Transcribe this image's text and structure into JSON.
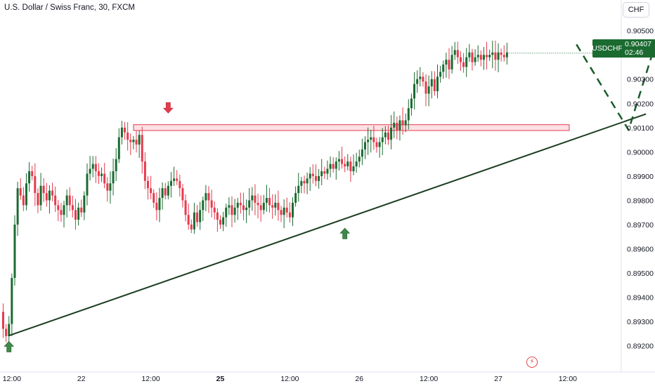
{
  "header": {
    "title": "U.S. Dollar / Swiss Franc, 30, FXCM"
  },
  "currency_button": {
    "label": "CHF"
  },
  "price_tag": {
    "symbol": "USDCHF",
    "price": "0.90407",
    "countdown": "02:46"
  },
  "icons": {
    "flash": "lightning-icon",
    "arrow_up": "arrow-up-icon",
    "arrow_down": "arrow-down-icon"
  },
  "colors": {
    "up": "#1b6b31",
    "down": "#e53b4e",
    "trendline": "#1a3d1f",
    "zone_fill": "#f7c9cf",
    "zone_stroke": "#e53b4e"
  },
  "chart_data": {
    "type": "candlestick",
    "title": "U.S. Dollar / Swiss Franc, 30, FXCM",
    "ylim": [
      0.8915,
      0.9058
    ],
    "y_ticks": [
      "0.89200",
      "0.89300",
      "0.89400",
      "0.89500",
      "0.89600",
      "0.89700",
      "0.89800",
      "0.89900",
      "0.90000",
      "0.90100",
      "0.90200",
      "0.90300",
      "0.90400",
      "0.90500"
    ],
    "x_ticks": [
      {
        "label": "12:00",
        "bold": false,
        "i": 3
      },
      {
        "label": "22",
        "bold": false,
        "i": 27
      },
      {
        "label": "12:00",
        "bold": false,
        "i": 51
      },
      {
        "label": "25",
        "bold": true,
        "i": 75
      },
      {
        "label": "12:00",
        "bold": false,
        "i": 99
      },
      {
        "label": "26",
        "bold": false,
        "i": 123
      },
      {
        "label": "12:00",
        "bold": false,
        "i": 147
      },
      {
        "label": "27",
        "bold": false,
        "i": 171
      },
      {
        "label": "12:00",
        "bold": false,
        "i": 195
      }
    ],
    "close": [
      0.8927,
      0.8924,
      0.8929,
      0.8948,
      0.897,
      0.8985,
      0.8982,
      0.8978,
      0.8987,
      0.8992,
      0.899,
      0.8983,
      0.8978,
      0.8986,
      0.8983,
      0.898,
      0.8984,
      0.8982,
      0.8978,
      0.8976,
      0.8974,
      0.8978,
      0.8982,
      0.8978,
      0.8976,
      0.8972,
      0.8977,
      0.8975,
      0.8982,
      0.8991,
      0.8993,
      0.8995,
      0.8992,
      0.899,
      0.8991,
      0.8987,
      0.8984,
      0.8987,
      0.8992,
      0.8997,
      0.9006,
      0.901,
      0.9008,
      0.9005,
      0.9004,
      0.9005,
      0.9003,
      0.9007,
      0.8996,
      0.8988,
      0.8985,
      0.8983,
      0.8979,
      0.8976,
      0.8981,
      0.8985,
      0.8982,
      0.8986,
      0.8988,
      0.8989,
      0.8988,
      0.8985,
      0.898,
      0.8974,
      0.897,
      0.8968,
      0.8975,
      0.8971,
      0.8976,
      0.898,
      0.8983,
      0.898,
      0.8977,
      0.8975,
      0.8972,
      0.897,
      0.8973,
      0.8977,
      0.8978,
      0.8974,
      0.8977,
      0.8979,
      0.8978,
      0.8976,
      0.8977,
      0.898,
      0.8982,
      0.8979,
      0.8978,
      0.8976,
      0.8979,
      0.8981,
      0.8978,
      0.8977,
      0.8979,
      0.8976,
      0.8974,
      0.8977,
      0.8975,
      0.8973,
      0.8979,
      0.8983,
      0.8986,
      0.8988,
      0.8987,
      0.8989,
      0.8991,
      0.899,
      0.8988,
      0.899,
      0.8992,
      0.8991,
      0.8993,
      0.8995,
      0.8993,
      0.8996,
      0.8997,
      0.8995,
      0.8994,
      0.8996,
      0.8992,
      0.8994,
      0.8996,
      0.8998,
      0.9001,
      0.9004,
      0.9005,
      0.9006,
      0.9004,
      0.9002,
      0.9004,
      0.9006,
      0.9008,
      0.9005,
      0.901,
      0.9012,
      0.9009,
      0.9013,
      0.9011,
      0.9013,
      0.9018,
      0.9022,
      0.9028,
      0.903,
      0.9031,
      0.9029,
      0.9024,
      0.9027,
      0.903,
      0.9025,
      0.9031,
      0.9033,
      0.9036,
      0.9038,
      0.9034,
      0.904,
      0.9042,
      0.9039,
      0.9037,
      0.9035,
      0.9039,
      0.9041,
      0.9037,
      0.9039,
      0.904,
      0.9038,
      0.904,
      0.9039,
      0.904,
      0.9041,
      0.9038,
      0.9041,
      0.904,
      0.9039,
      0.9041
    ],
    "zone": {
      "label": "",
      "top": 0.90112,
      "bottom": 0.90088
    },
    "trendline": [
      {
        "i": 2,
        "y": 0.89242
      },
      {
        "i": 222,
        "y": 0.90156
      }
    ],
    "projection": [
      {
        "i": 198,
        "y": 0.90443
      },
      {
        "i": 216,
        "y": 0.9009
      },
      {
        "i": 228,
        "y": 0.9055
      },
      {
        "i": 231,
        "y": 0.905
      }
    ],
    "markers": [
      {
        "type": "arrow-up",
        "i": 2,
        "y": 0.89218
      },
      {
        "type": "arrow-down",
        "i": 57,
        "y": 0.9016
      },
      {
        "type": "arrow-up",
        "i": 118,
        "y": 0.89685
      }
    ]
  }
}
